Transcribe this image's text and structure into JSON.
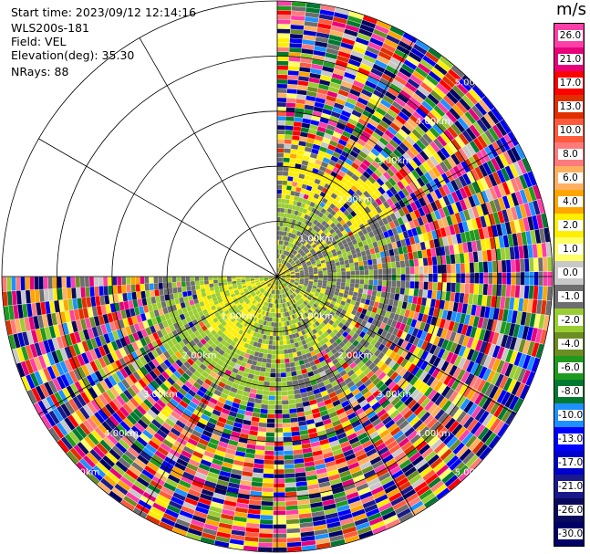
{
  "header": {
    "start_time": "Start time: 2023/09/12 12:14:16",
    "instrument": "WLS200s-181",
    "field": "Field: VEL",
    "elevation": "Elevation(deg): 35.30",
    "nrays": "NRays: 88"
  },
  "colorbar": {
    "unit": "m/s",
    "ticks": [
      "26.0",
      "21.0",
      "17.0",
      "13.0",
      "10.0",
      "8.0",
      "6.0",
      "4.0",
      "2.0",
      "1.0",
      "0.0",
      "-1.0",
      "-2.0",
      "-4.0",
      "-6.0",
      "-8.0",
      "-10.0",
      "-13.0",
      "-17.0",
      "-21.0",
      "-26.0",
      "-30.0"
    ],
    "colors": [
      "#ff3fa8",
      "#e8007a",
      "#ff0000",
      "#e03000",
      "#ff5a3c",
      "#ff7a7a",
      "#ffb060",
      "#ffa500",
      "#ffee00",
      "#ffff66",
      "#c8c8c8",
      "#6e6e6e",
      "#9acd32",
      "#6b8e23",
      "#1f9a1f",
      "#007a30",
      "#1e90ff",
      "#0000ff",
      "#0000cc",
      "#1a1a8c",
      "#0a0a5c",
      "#000066"
    ]
  },
  "chart_data": {
    "type": "ppi",
    "title": "",
    "field": "VEL",
    "units": "m/s",
    "elevation_deg": 35.3,
    "nrays": 88,
    "range_rings_km": [
      1.0,
      2.0,
      3.0,
      4.0,
      5.0
    ],
    "ring_labels": [
      "1.00km",
      "2.00km",
      "3.00km",
      "4.00km",
      "5.00km"
    ],
    "max_range_km": 5.0,
    "azimuth_spokes_deg": [
      0,
      30,
      60,
      90,
      120,
      150,
      180,
      210,
      240,
      270,
      300,
      330
    ],
    "sector": {
      "missing_from_deg": 270,
      "missing_to_deg": 360
    },
    "color_levels": [
      -30.0,
      -26.0,
      -21.0,
      -17.0,
      -13.0,
      -10.0,
      -8.0,
      -6.0,
      -4.0,
      -2.0,
      -1.0,
      0.0,
      1.0,
      2.0,
      4.0,
      6.0,
      8.0,
      10.0,
      13.0,
      17.0,
      21.0,
      26.0
    ],
    "near_field_pattern": {
      "inner_km": 1.2,
      "description_values_ms": [
        0.0,
        -2.0,
        2.0
      ]
    }
  }
}
